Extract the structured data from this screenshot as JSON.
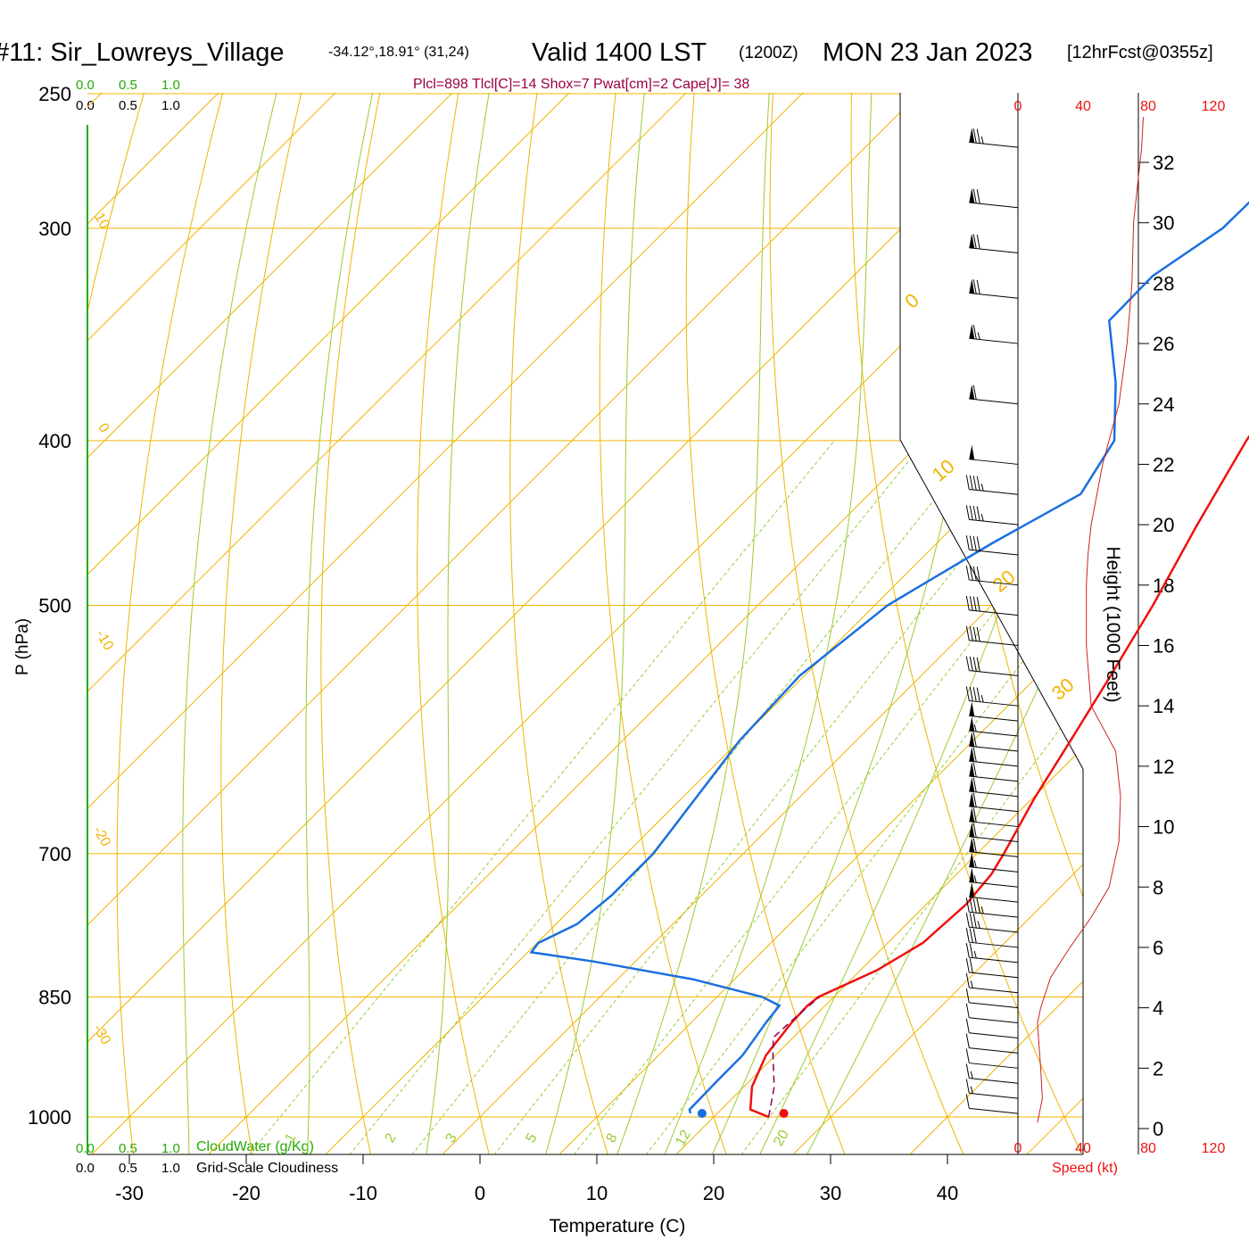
{
  "header": {
    "station": "#11: Sir_Lowreys_Village",
    "coords": "-34.12°,18.91° (31,24)",
    "valid": "Valid 1400 LST",
    "zulu": "(1200Z)",
    "date": "MON 23 Jan 2023",
    "forecast": "[12hrFcst@0355z]",
    "indices": "Plcl=898 Tlcl[C]=14 Shox=7 Pwat[cm]=2 Cape[J]= 38"
  },
  "chart_data": {
    "type": "skew-t",
    "xlabel": "Temperature (C)",
    "ylabel": "P (hPa)",
    "right_axis_label": "Height (1000 Feet)",
    "speed_label": "Speed (kt)",
    "x_ticks": [
      "-30",
      "-20",
      "-10",
      "0",
      "10",
      "20",
      "30",
      "40"
    ],
    "p_levels": [
      250,
      300,
      400,
      500,
      700,
      850,
      1000
    ],
    "p_tick_labels": [
      "250",
      "300",
      "400",
      "500",
      "700",
      "850",
      "1000"
    ],
    "height_ticks": [
      "0",
      "2",
      "4",
      "6",
      "8",
      "10",
      "12",
      "14",
      "16",
      "18",
      "20",
      "22",
      "24",
      "26",
      "28",
      "30",
      "32"
    ],
    "speed_ticks": [
      "0",
      "40",
      "80",
      "120"
    ],
    "cloud_scale": [
      "0.0",
      "0.5",
      "1.0"
    ],
    "cloud_water_label": "CloudWater (g/Kg)",
    "cloudiness_label": "Grid-Scale Cloudiness",
    "isotherm_labels": [
      "10",
      "0",
      "-10",
      "-20",
      "-30",
      "0",
      "10",
      "20",
      "30"
    ],
    "mixing_ratio_labels": [
      "1",
      "2",
      "3",
      "5",
      "8",
      "12",
      "20"
    ],
    "series": [
      {
        "name": "Temperature",
        "color": "#ee1111",
        "points": [
          [
            1000,
            24.7
          ],
          [
            990,
            22.5
          ],
          [
            960,
            20.7
          ],
          [
            920,
            19.2
          ],
          [
            880,
            18.6
          ],
          [
            860,
            18.5
          ],
          [
            850,
            18.7
          ],
          [
            820,
            21.4
          ],
          [
            790,
            23.0
          ],
          [
            750,
            23.4
          ],
          [
            720,
            23.0
          ],
          [
            700,
            22.3
          ],
          [
            650,
            20.2
          ],
          [
            600,
            18.3
          ],
          [
            550,
            16.2
          ],
          [
            500,
            13.8
          ],
          [
            450,
            10.8
          ],
          [
            400,
            7.7
          ],
          [
            350,
            5.0
          ],
          [
            300,
            1.9
          ],
          [
            270,
            0.0
          ],
          [
            260,
            -0.7
          ]
        ]
      },
      {
        "name": "Dewpoint",
        "color": "#1a6fe0",
        "points": [
          [
            995,
            17.7
          ],
          [
            990,
            17.3
          ],
          [
            950,
            17.2
          ],
          [
            920,
            17.2
          ],
          [
            880,
            16.4
          ],
          [
            860,
            16.1
          ],
          [
            850,
            13.9
          ],
          [
            830,
            6.5
          ],
          [
            810,
            -3.6
          ],
          [
            800,
            -9.7
          ],
          [
            790,
            -9.9
          ],
          [
            770,
            -8.2
          ],
          [
            740,
            -7.7
          ],
          [
            700,
            -7.7
          ],
          [
            650,
            -8.8
          ],
          [
            600,
            -10.0
          ],
          [
            550,
            -10.4
          ],
          [
            500,
            -8.9
          ],
          [
            460,
            -5.3
          ],
          [
            430,
            -1.9
          ],
          [
            400,
            -3.6
          ],
          [
            370,
            -8.4
          ],
          [
            340,
            -14.3
          ],
          [
            320,
            -14.4
          ],
          [
            300,
            -12.5
          ],
          [
            285,
            -12.4
          ],
          [
            265,
            -14.6
          ]
        ]
      },
      {
        "name": "Parcel",
        "color": "#880055",
        "dash": true,
        "points": [
          [
            1000,
            24.7
          ],
          [
            960,
            22.6
          ],
          [
            920,
            19.8
          ],
          [
            898,
            18.3
          ],
          [
            870,
            18.5
          ],
          [
            850,
            18.8
          ]
        ]
      }
    ],
    "surface_temp": 26.0,
    "surface_dewpoint": 19.0,
    "wind_speed_profile": [
      [
        0.2,
        12
      ],
      [
        1.0,
        15
      ],
      [
        2.0,
        14
      ],
      [
        3.5,
        12
      ],
      [
        4.0,
        14
      ],
      [
        5.0,
        20
      ],
      [
        6.0,
        32
      ],
      [
        7.0,
        45
      ],
      [
        8.0,
        56
      ],
      [
        9.5,
        62
      ],
      [
        11.0,
        63
      ],
      [
        12.5,
        60
      ],
      [
        14.0,
        45
      ],
      [
        16.0,
        42
      ],
      [
        18.0,
        42
      ],
      [
        19.0,
        43
      ],
      [
        20.0,
        45
      ],
      [
        22.0,
        52
      ],
      [
        24.0,
        62
      ],
      [
        26.0,
        67
      ],
      [
        28.0,
        70
      ],
      [
        30.0,
        71
      ],
      [
        31.0,
        73
      ],
      [
        32.5,
        76
      ],
      [
        33.5,
        77
      ]
    ],
    "wind_barbs": [
      {
        "h": 0.5,
        "speed": 12
      },
      {
        "h": 1.0,
        "speed": 15
      },
      {
        "h": 1.5,
        "speed": 15
      },
      {
        "h": 2.0,
        "speed": 14
      },
      {
        "h": 2.5,
        "speed": 13
      },
      {
        "h": 3.0,
        "speed": 12
      },
      {
        "h": 3.5,
        "speed": 12
      },
      {
        "h": 4.0,
        "speed": 14
      },
      {
        "h": 4.5,
        "speed": 17
      },
      {
        "h": 5.0,
        "speed": 20
      },
      {
        "h": 5.5,
        "speed": 25
      },
      {
        "h": 6.0,
        "speed": 32
      },
      {
        "h": 6.5,
        "speed": 38
      },
      {
        "h": 7.0,
        "speed": 45
      },
      {
        "h": 7.5,
        "speed": 50
      },
      {
        "h": 8.0,
        "speed": 56
      },
      {
        "h": 8.5,
        "speed": 58
      },
      {
        "h": 9.0,
        "speed": 60
      },
      {
        "h": 9.5,
        "speed": 62
      },
      {
        "h": 10.0,
        "speed": 62
      },
      {
        "h": 10.5,
        "speed": 63
      },
      {
        "h": 11.0,
        "speed": 63
      },
      {
        "h": 11.5,
        "speed": 62
      },
      {
        "h": 12.0,
        "speed": 61
      },
      {
        "h": 12.5,
        "speed": 60
      },
      {
        "h": 13.0,
        "speed": 55
      },
      {
        "h": 13.5,
        "speed": 50
      },
      {
        "h": 14.0,
        "speed": 45
      },
      {
        "h": 15.0,
        "speed": 43
      },
      {
        "h": 16.0,
        "speed": 42
      },
      {
        "h": 17.0,
        "speed": 42
      },
      {
        "h": 18.0,
        "speed": 42
      },
      {
        "h": 19.0,
        "speed": 43
      },
      {
        "h": 20.0,
        "speed": 45
      },
      {
        "h": 21.0,
        "speed": 48
      },
      {
        "h": 22.0,
        "speed": 52
      },
      {
        "h": 24.0,
        "speed": 62
      },
      {
        "h": 26.0,
        "speed": 67
      },
      {
        "h": 27.5,
        "speed": 70
      },
      {
        "h": 29.0,
        "speed": 70
      },
      {
        "h": 30.5,
        "speed": 71
      },
      {
        "h": 32.5,
        "speed": 76
      }
    ]
  }
}
